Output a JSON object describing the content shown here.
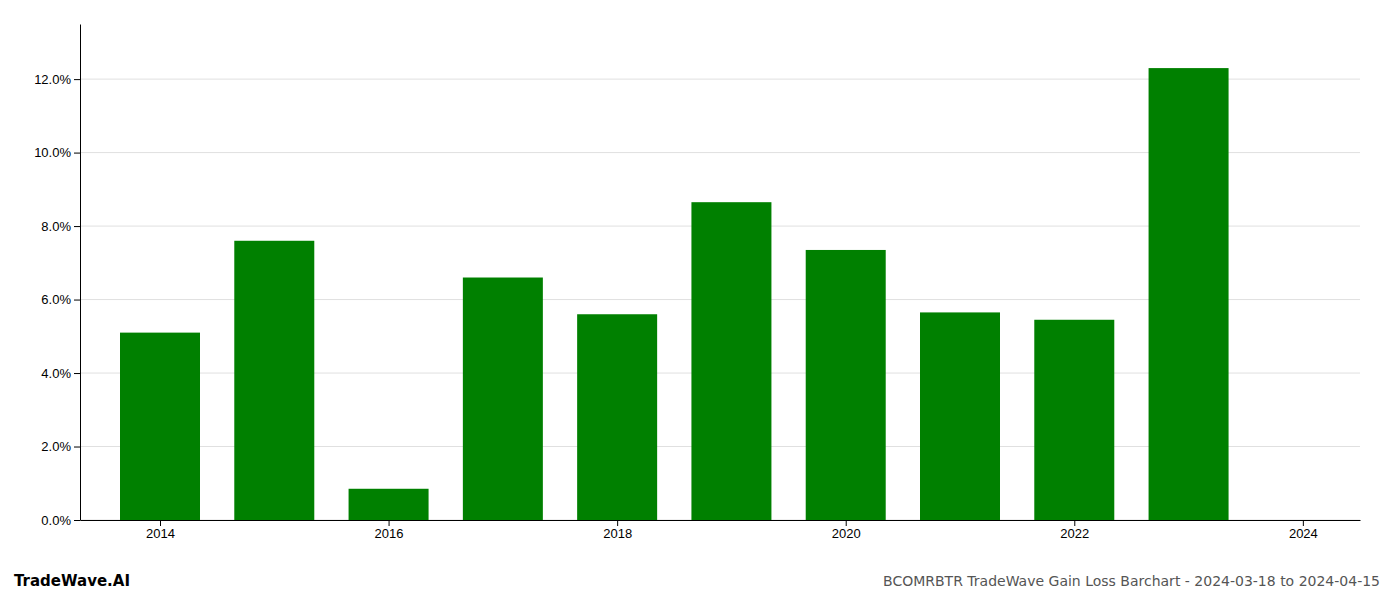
{
  "chart_data": {
    "type": "bar",
    "title": "BCOMRBTR TradeWave Gain Loss Barchart - 2024-03-18 to 2024-04-15",
    "annotations": [
      "TradeWave.AI"
    ],
    "x": [
      2014,
      2015,
      2016,
      2017,
      2018,
      2019,
      2020,
      2021,
      2022,
      2023
    ],
    "values": [
      0.051,
      0.076,
      0.0085,
      0.066,
      0.056,
      0.0865,
      0.0735,
      0.0565,
      0.0545,
      0.123
    ],
    "color": "#008000",
    "xlim": [
      2013.3,
      2024.5
    ],
    "xticks": [
      2014,
      2016,
      2018,
      2020,
      2022,
      2024
    ],
    "ylim": [
      0,
      0.135
    ],
    "yticks": [
      {
        "value": 0.0,
        "label": "0.0%"
      },
      {
        "value": 0.02,
        "label": "2.0%"
      },
      {
        "value": 0.04,
        "label": "4.0%"
      },
      {
        "value": 0.06,
        "label": "6.0%"
      },
      {
        "value": 0.08,
        "label": "8.0%"
      },
      {
        "value": 0.1,
        "label": "10.0%"
      },
      {
        "value": 0.12,
        "label": "12.0%"
      }
    ],
    "grid": true
  }
}
